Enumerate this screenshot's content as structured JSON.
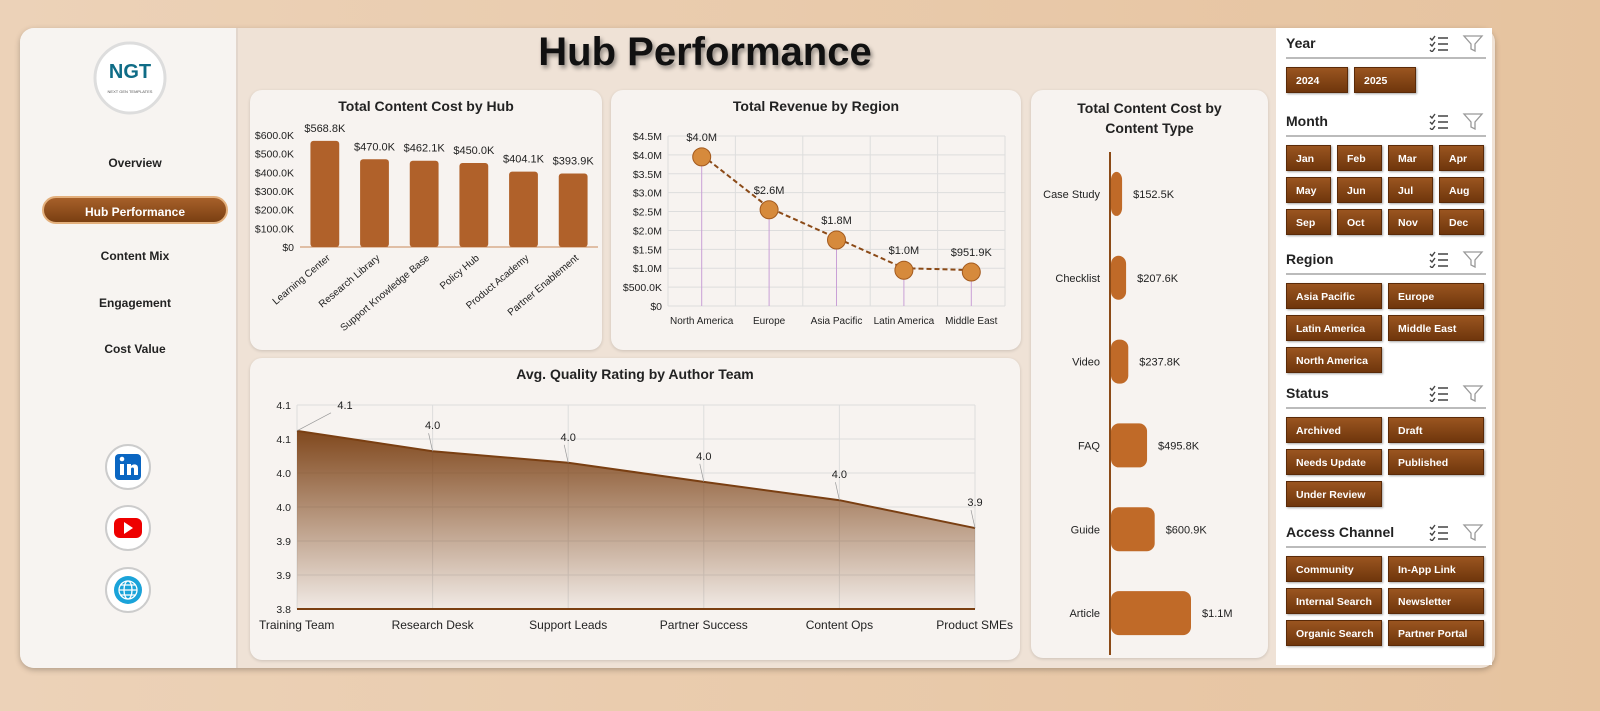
{
  "header": {
    "title": "Hub Performance"
  },
  "logo": {
    "name": "NGT",
    "tagline": "NEXT GEN TEMPLATES"
  },
  "nav": {
    "items": [
      "Overview",
      "Hub Performance",
      "Content Mix",
      "Engagement",
      "Cost Value"
    ],
    "active": 1
  },
  "chart_data": [
    {
      "type": "bar",
      "title": "Total Content Cost by Hub",
      "categories": [
        "Learning Center",
        "Research Library",
        "Support Knowledge Base",
        "Policy Hub",
        "Product Academy",
        "Partner Enablement"
      ],
      "values": [
        568800,
        470000,
        462100,
        450000,
        404100,
        393900
      ],
      "value_labels": [
        "$568.8K",
        "$470.0K",
        "$462.1K",
        "$450.0K",
        "$404.1K",
        "$393.9K"
      ],
      "color": "#b0612a",
      "ylim": [
        0,
        600000
      ],
      "yticks": [
        {
          "value": 0,
          "label": "$0"
        },
        {
          "value": 100000,
          "label": "$100.0K"
        },
        {
          "value": 200000,
          "label": "$200.0K"
        },
        {
          "value": 300000,
          "label": "$300.0K"
        },
        {
          "value": 400000,
          "label": "$400.0K"
        },
        {
          "value": 500000,
          "label": "$500.0K"
        },
        {
          "value": 600000,
          "label": "$600.0K"
        }
      ],
      "grid": false
    },
    {
      "type": "line",
      "title": "Total Revenue by Region",
      "categories": [
        "North America",
        "Europe",
        "Asia Pacific",
        "Latin America",
        "Middle East"
      ],
      "values": [
        4000000,
        2600000,
        1800000,
        1000000,
        951900
      ],
      "value_labels": [
        "$4.0M",
        "$2.6M",
        "$1.8M",
        "$1.0M",
        "$951.9K"
      ],
      "color": "#8b4a17",
      "ylim": [
        0,
        4500000
      ],
      "yticks": [
        {
          "value": 0,
          "label": "$0"
        },
        {
          "value": 500000,
          "label": "$500.0K"
        },
        {
          "value": 1000000,
          "label": "$1.0M"
        },
        {
          "value": 1500000,
          "label": "$1.5M"
        },
        {
          "value": 2000000,
          "label": "$2.0M"
        },
        {
          "value": 2500000,
          "label": "$2.5M"
        },
        {
          "value": 3000000,
          "label": "$3.0M"
        },
        {
          "value": 3500000,
          "label": "$3.5M"
        },
        {
          "value": 4000000,
          "label": "$4.0M"
        },
        {
          "value": 4500000,
          "label": "$4.5M"
        }
      ],
      "grid": true
    },
    {
      "type": "area",
      "title": "Avg. Quality Rating by Author Team",
      "categories": [
        "Training Team",
        "Research Desk",
        "Support Leads",
        "Partner Success",
        "Content Ops",
        "Product SMEs"
      ],
      "values": [
        4.062,
        4.032,
        4.015,
        3.987,
        3.96,
        3.919
      ],
      "value_labels": [
        "4.1",
        "4.0",
        "4.0",
        "4.0",
        "4.0",
        "3.9"
      ],
      "color": "#7a3f12",
      "ylim": [
        3.8,
        4.1
      ],
      "yticks": [
        3.8,
        {
          "value": 3.85,
          "label": "3.9"
        },
        3.9,
        {
          "value": 3.95,
          "label": "4.0"
        },
        {
          "value": 4,
          "label": "4.0"
        },
        {
          "value": 4.05,
          "label": "4.1"
        },
        4.1
      ],
      "grid": true
    },
    {
      "type": "bar",
      "orientation": "horizontal",
      "title": "Total Content Cost by Content Type",
      "categories": [
        "Case Study",
        "Checklist",
        "Video",
        "FAQ",
        "Guide",
        "Article"
      ],
      "values": [
        152500,
        207600,
        237800,
        495800,
        600900,
        1100000
      ],
      "value_labels": [
        "$152.5K",
        "$207.6K",
        "$237.8K",
        "$495.8K",
        "$600.9K",
        "$1.1M"
      ],
      "color": "#c06a28",
      "grid": false
    }
  ],
  "slicers": [
    {
      "title": "Year",
      "items": [
        "2024",
        "2025"
      ]
    },
    {
      "title": "Month",
      "items": [
        "Jan",
        "Feb",
        "Mar",
        "Apr",
        "May",
        "Jun",
        "Jul",
        "Aug",
        "Sep",
        "Oct",
        "Nov",
        "Dec"
      ]
    },
    {
      "title": "Region",
      "items": [
        "Asia Pacific",
        "Europe",
        "Latin America",
        "Middle East",
        "North America"
      ]
    },
    {
      "title": "Status",
      "items": [
        "Archived",
        "Draft",
        "Needs Update",
        "Published",
        "Under Review"
      ]
    },
    {
      "title": "Access Channel",
      "items": [
        "Community",
        "In-App Link",
        "Internal Search",
        "Newsletter",
        "Organic Search",
        "Partner Portal"
      ]
    }
  ]
}
